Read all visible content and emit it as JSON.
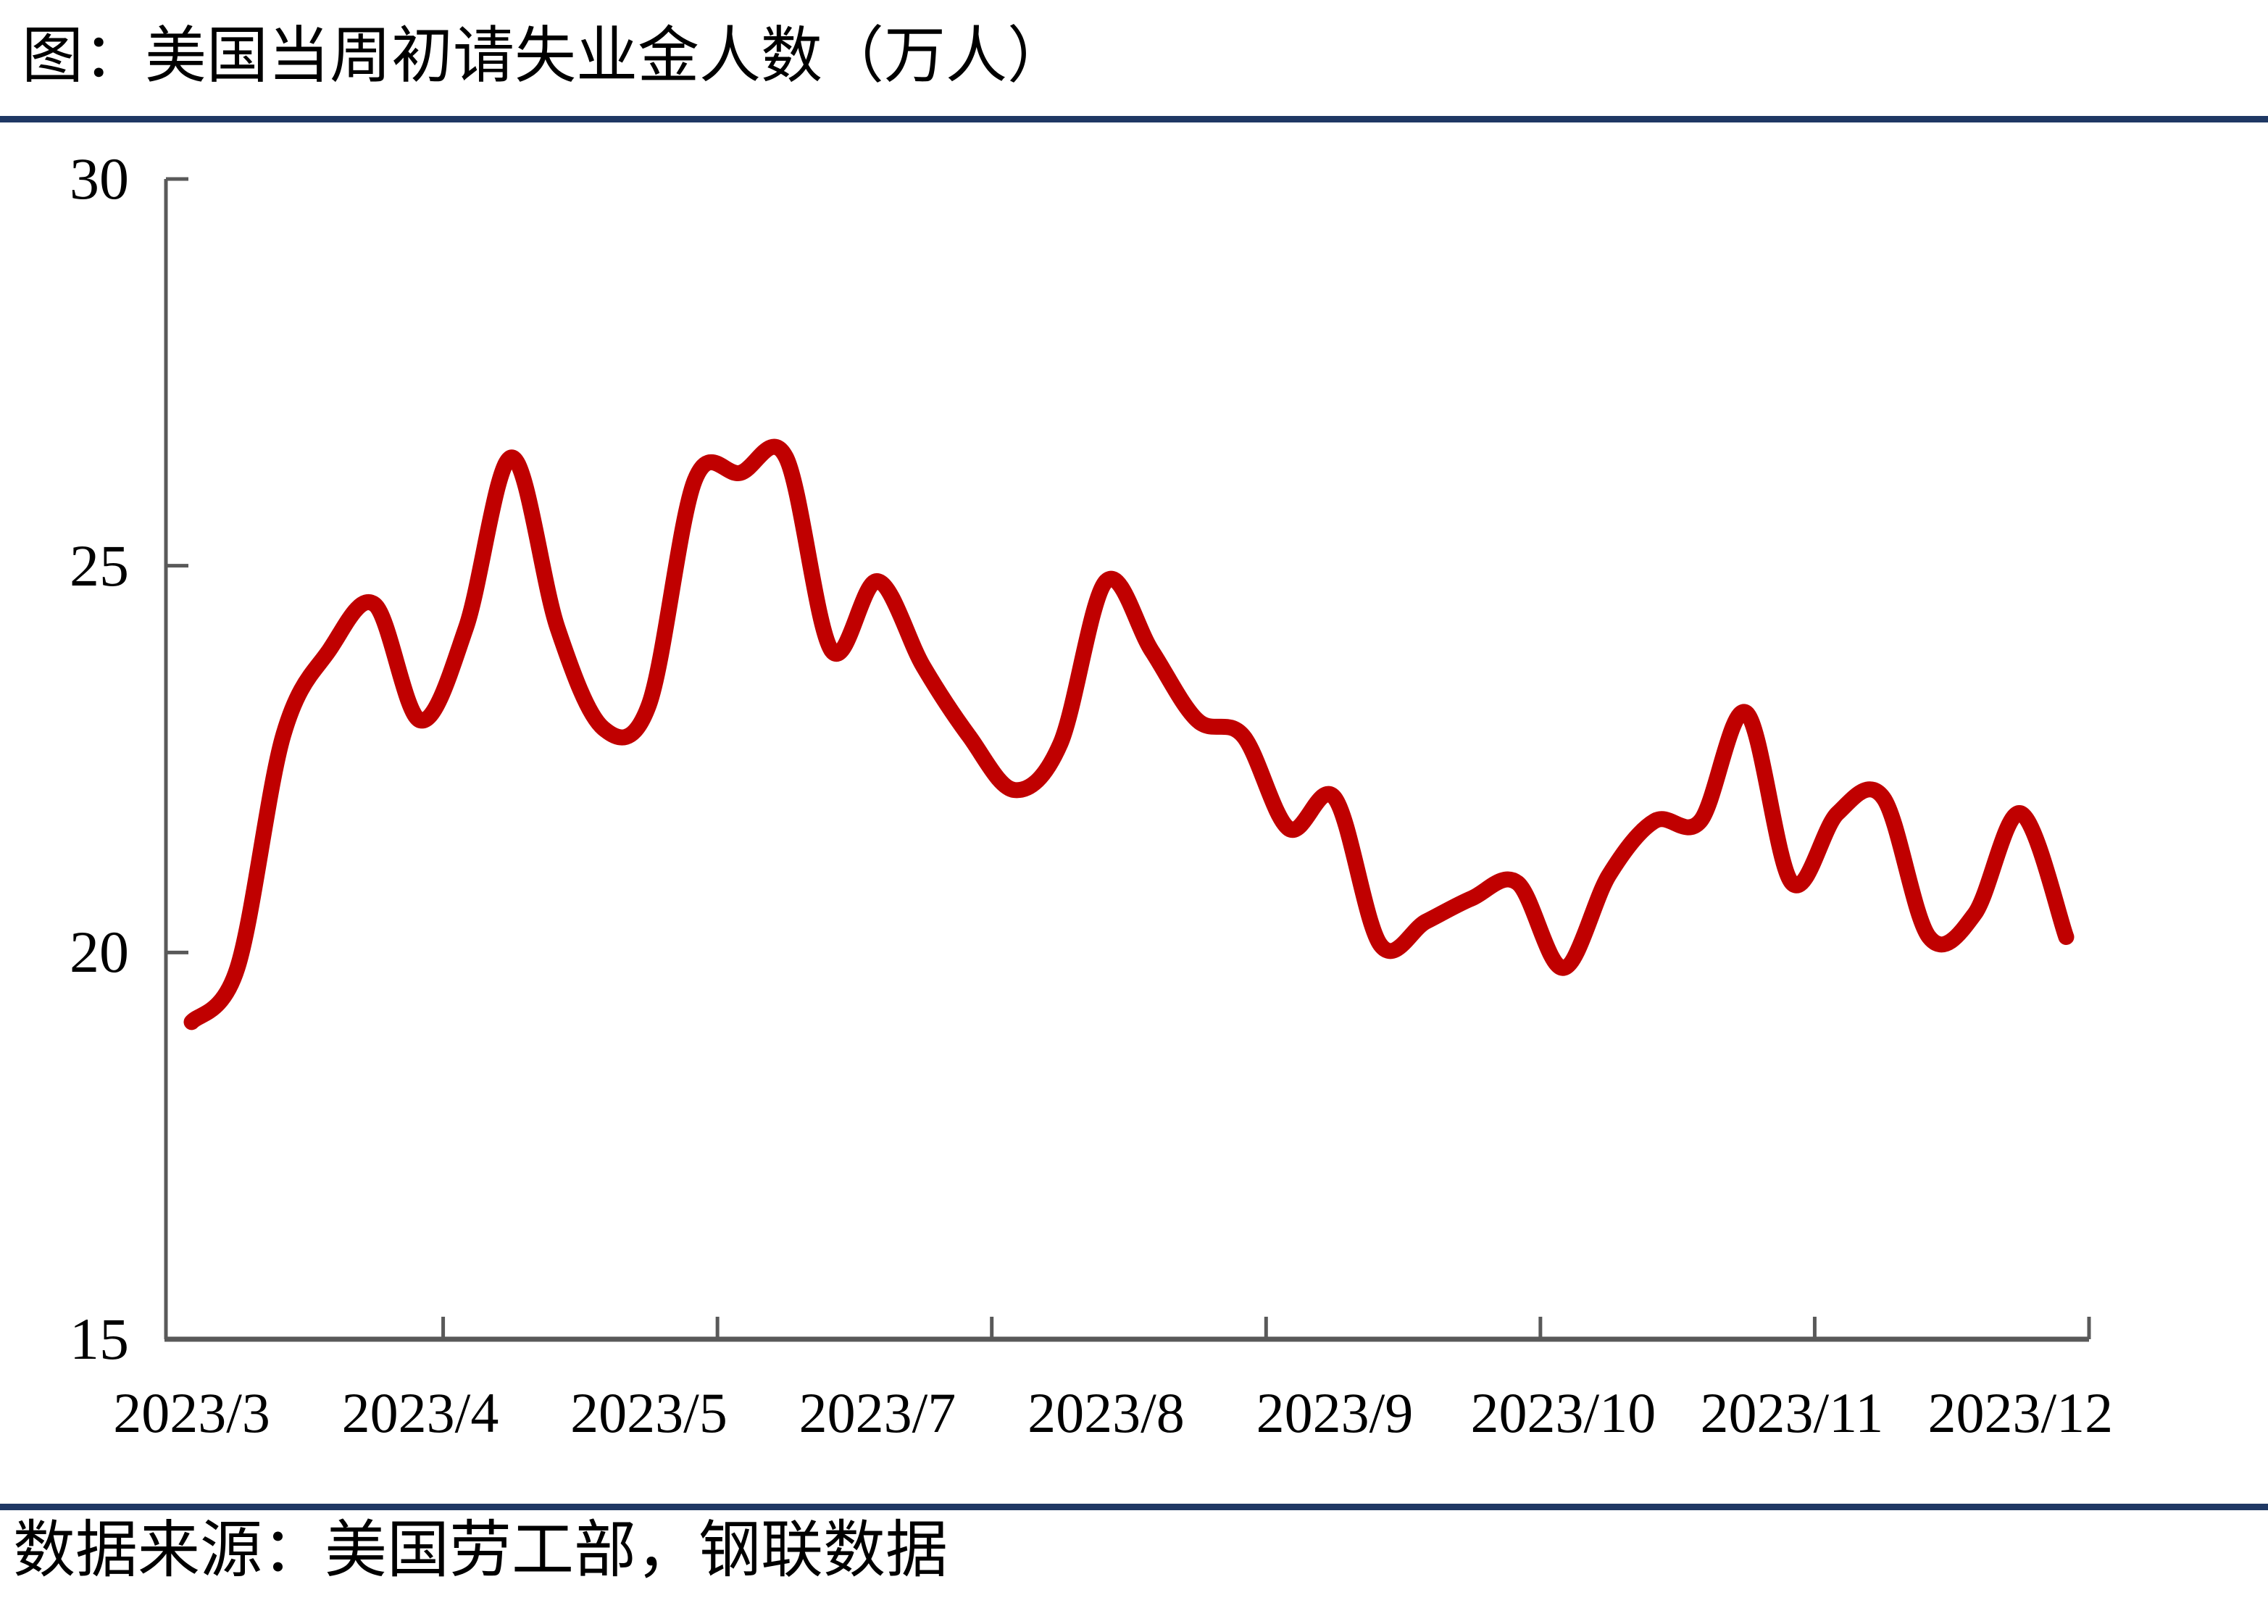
{
  "page": {
    "title": "图：美国当周初请失业金人数（万人）",
    "source": "数据来源：美国劳工部，钢联数据"
  },
  "colors": {
    "background": "#FFFFFF",
    "line": "#C00000",
    "axis": "#595959",
    "rule": "#1F3864",
    "text": "#000000"
  },
  "chart_data": {
    "type": "line",
    "title": "美国当周初请失业金人数（万人）",
    "ylabel": "万人",
    "ylim": [
      15,
      30
    ],
    "y_ticks": [
      30,
      25,
      20,
      15
    ],
    "x_tick_labels": [
      "2023/3",
      "2023/4",
      "2023/5",
      "2023/7",
      "2023/8",
      "2023/9",
      "2023/10",
      "2023/11",
      "2023/12"
    ],
    "grid": false,
    "legend_position": "none",
    "line_smoothed": true,
    "axis_divisions": 7,
    "label_interval": 5,
    "series": [
      {
        "name": "美国当周初请失业金人数",
        "values": [
          19.1,
          19.8,
          22.8,
          23.9,
          24.5,
          23.0,
          24.2,
          26.4,
          24.2,
          22.9,
          23.2,
          26.1,
          26.2,
          26.4,
          23.9,
          24.8,
          23.7,
          22.8,
          22.1,
          22.7,
          24.8,
          23.9,
          23.0,
          22.8,
          21.6,
          22.0,
          20.1,
          20.4,
          20.7,
          20.9,
          19.8,
          21.0,
          21.7,
          21.7,
          23.1,
          20.9,
          21.8,
          22.0,
          20.2,
          20.5,
          21.8,
          20.2
        ]
      }
    ]
  }
}
